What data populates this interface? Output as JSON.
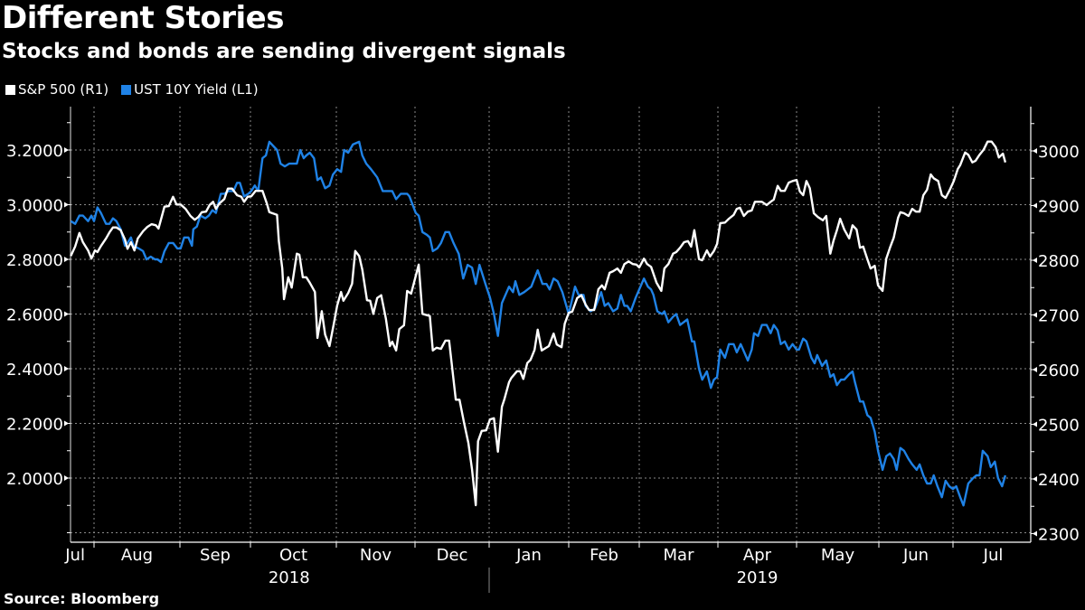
{
  "colors": {
    "background": "#000000",
    "sp500": "#ffffff",
    "ust10y": "#1f82e6",
    "grid": "#8a8a8a"
  },
  "chart_data": {
    "type": "line",
    "title": "Different Stories",
    "subtitle": "Stocks and bonds are sending divergent signals",
    "source": "Source: Bloomberg",
    "x_unit": "months since 2018-07-01",
    "x_tick_labels": [
      "Jul",
      "Aug",
      "Sep",
      "Oct",
      "Nov",
      "Dec",
      "Jan",
      "Feb",
      "Mar",
      "Apr",
      "May",
      "Jun",
      "Jul"
    ],
    "year_labels": [
      "2018",
      "2019"
    ],
    "left_axis": {
      "ylim": [
        1.8,
        3.3
      ],
      "tick_labels": [
        "3.2000",
        "3.0000",
        "2.8000",
        "2.6000",
        "2.4000",
        "2.2000",
        "2.0000"
      ],
      "ticks": [
        3.2,
        3.0,
        2.8,
        2.6,
        2.4,
        2.2,
        2.0
      ]
    },
    "right_axis": {
      "ylim": [
        2300,
        3050
      ],
      "tick_labels": [
        "3000",
        "2900",
        "2800",
        "2700",
        "2600",
        "2500",
        "2400",
        "2300"
      ],
      "ticks": [
        3000,
        2900,
        2800,
        2700,
        2600,
        2500,
        2400,
        2300
      ]
    },
    "grid": true,
    "legend_position": "top-left",
    "series": [
      {
        "name": "S&P 500 (R1)",
        "axis": "right",
        "x": [
          0.73,
          0.78,
          0.83,
          0.87,
          0.93,
          0.97,
          1.01,
          1.04,
          1.08,
          1.14,
          1.18,
          1.22,
          1.26,
          1.31,
          1.36,
          1.39,
          1.43,
          1.47,
          1.51,
          1.57,
          1.62,
          1.67,
          1.72,
          1.75,
          1.79,
          1.82,
          1.87,
          1.92,
          1.96,
          2.01,
          2.08,
          2.15,
          2.21,
          2.26,
          2.31,
          2.37,
          2.42,
          2.47,
          2.51,
          2.56,
          2.63,
          2.68,
          2.74,
          2.81,
          2.87,
          2.91,
          2.96,
          3.01,
          3.06,
          3.14,
          3.19,
          3.22,
          3.31,
          3.33,
          3.37,
          3.39,
          3.44,
          3.48,
          3.54,
          3.57,
          3.61,
          3.65,
          3.69,
          3.75,
          3.78,
          3.83,
          3.87,
          3.92,
          3.97,
          4.01,
          4.06,
          4.09,
          4.15,
          4.2,
          4.24,
          4.29,
          4.33,
          4.39,
          4.43,
          4.47,
          4.52,
          4.57,
          4.63,
          4.68,
          4.71,
          4.76,
          4.8,
          4.86,
          4.9,
          4.95,
          5.05,
          5.1,
          5.2,
          5.24,
          5.29,
          5.35,
          5.41,
          5.46,
          5.55,
          5.6,
          5.66,
          5.72,
          5.77,
          5.82,
          5.85,
          5.9,
          5.96,
          6.01,
          6.06,
          6.11,
          6.16,
          6.19,
          6.25,
          6.28,
          6.35,
          6.39,
          6.43,
          6.48,
          6.52,
          6.57,
          6.61,
          6.66,
          6.75,
          6.81,
          6.85,
          6.91,
          6.95,
          7.0,
          7.05,
          7.12,
          7.18,
          7.24,
          7.29,
          7.36,
          7.42,
          7.47,
          7.51,
          7.58,
          7.63,
          7.69,
          7.74,
          7.79,
          7.85,
          7.91,
          7.96,
          8.0,
          8.06,
          8.1,
          8.15,
          8.22,
          8.28,
          8.32,
          8.37,
          8.43,
          8.47,
          8.52,
          8.57,
          8.62,
          8.66,
          8.7,
          8.76,
          8.8,
          8.86,
          8.9,
          8.95,
          8.99,
          9.03,
          9.09,
          9.14,
          9.2,
          9.24,
          9.28,
          9.33,
          9.38,
          9.43,
          9.47,
          9.52,
          9.56,
          9.62,
          9.67,
          9.71,
          9.76,
          9.8,
          9.85,
          9.9,
          9.95,
          10.0,
          10.04,
          10.08,
          10.12,
          10.16,
          10.21,
          10.26,
          10.32,
          10.36,
          10.41,
          10.45,
          10.49,
          10.53,
          10.58,
          10.64,
          10.68,
          10.73,
          10.77,
          10.81,
          10.86,
          10.9,
          10.95,
          10.99,
          11.05,
          11.1,
          11.15,
          11.2,
          11.26,
          11.29,
          11.34,
          11.4,
          11.45,
          11.5,
          11.55,
          11.6,
          11.65,
          11.7,
          11.74,
          11.8,
          11.85,
          11.9,
          11.95,
          12.01,
          12.06,
          12.09,
          12.15,
          12.19,
          12.24,
          12.28,
          12.33,
          12.38,
          12.43,
          12.48,
          12.53,
          12.57,
          12.62,
          12.65
        ],
        "values": [
          2808,
          2825,
          2850,
          2833,
          2818,
          2803,
          2818,
          2815,
          2826,
          2840,
          2851,
          2860,
          2860,
          2855,
          2838,
          2821,
          2833,
          2818,
          2840,
          2853,
          2861,
          2866,
          2864,
          2858,
          2881,
          2898,
          2899,
          2916,
          2902,
          2902,
          2894,
          2881,
          2874,
          2879,
          2888,
          2889,
          2901,
          2907,
          2894,
          2904,
          2912,
          2931,
          2931,
          2919,
          2916,
          2907,
          2916,
          2917,
          2927,
          2927,
          2904,
          2888,
          2883,
          2835,
          2785,
          2729,
          2769,
          2750,
          2812,
          2810,
          2769,
          2769,
          2759,
          2742,
          2658,
          2707,
          2664,
          2643,
          2684,
          2717,
          2742,
          2726,
          2740,
          2757,
          2817,
          2808,
          2783,
          2727,
          2726,
          2702,
          2731,
          2736,
          2693,
          2643,
          2651,
          2635,
          2674,
          2681,
          2744,
          2739,
          2792,
          2702,
          2698,
          2635,
          2640,
          2638,
          2653,
          2653,
          2545,
          2545,
          2504,
          2466,
          2417,
          2352,
          2469,
          2488,
          2489,
          2509,
          2511,
          2450,
          2532,
          2545,
          2577,
          2585,
          2597,
          2597,
          2583,
          2612,
          2618,
          2636,
          2673,
          2635,
          2643,
          2666,
          2646,
          2641,
          2684,
          2704,
          2706,
          2731,
          2736,
          2719,
          2709,
          2709,
          2747,
          2754,
          2747,
          2777,
          2780,
          2785,
          2777,
          2793,
          2798,
          2793,
          2792,
          2787,
          2803,
          2793,
          2788,
          2759,
          2744,
          2785,
          2793,
          2812,
          2815,
          2823,
          2833,
          2835,
          2825,
          2855,
          2802,
          2800,
          2818,
          2807,
          2817,
          2830,
          2868,
          2869,
          2876,
          2883,
          2894,
          2896,
          2881,
          2889,
          2891,
          2907,
          2907,
          2907,
          2901,
          2907,
          2911,
          2936,
          2927,
          2927,
          2942,
          2945,
          2947,
          2926,
          2919,
          2945,
          2932,
          2886,
          2879,
          2873,
          2881,
          2812,
          2836,
          2855,
          2876,
          2856,
          2840,
          2864,
          2856,
          2823,
          2825,
          2802,
          2785,
          2790,
          2754,
          2744,
          2803,
          2823,
          2841,
          2878,
          2888,
          2886,
          2881,
          2894,
          2889,
          2889,
          2919,
          2929,
          2957,
          2950,
          2945,
          2919,
          2914,
          2927,
          2945,
          2967,
          2974,
          2997,
          2993,
          2979,
          2982,
          2993,
          3002,
          3017,
          3017,
          3007,
          2988,
          2995,
          2979
        ]
      },
      {
        "name": "UST 10Y Yield (L1)",
        "axis": "left",
        "x": [
          0.73,
          0.78,
          0.83,
          0.87,
          0.93,
          0.97,
          1.0,
          1.04,
          1.08,
          1.14,
          1.18,
          1.22,
          1.26,
          1.31,
          1.36,
          1.39,
          1.43,
          1.46,
          1.52,
          1.57,
          1.61,
          1.66,
          1.71,
          1.74,
          1.78,
          1.82,
          1.87,
          1.92,
          1.97,
          2.01,
          2.06,
          2.12,
          2.17,
          2.19,
          2.24,
          2.29,
          2.36,
          2.41,
          2.46,
          2.51,
          2.58,
          2.63,
          2.69,
          2.76,
          2.81,
          2.85,
          2.91,
          2.97,
          3.01,
          3.05,
          3.09,
          3.14,
          3.18,
          3.22,
          3.31,
          3.35,
          3.4,
          3.45,
          3.51,
          3.54,
          3.58,
          3.62,
          3.65,
          3.69,
          3.74,
          3.78,
          3.82,
          3.87,
          3.92,
          3.96,
          4.01,
          4.06,
          4.1,
          4.15,
          4.21,
          4.29,
          4.33,
          4.38,
          4.44,
          4.52,
          4.59,
          4.67,
          4.71,
          4.76,
          4.82,
          4.9,
          4.93,
          5.01,
          5.05,
          5.1,
          5.16,
          5.2,
          5.24,
          5.3,
          5.35,
          5.41,
          5.46,
          5.52,
          5.59,
          5.65,
          5.71,
          5.77,
          5.82,
          5.87,
          5.95,
          6.01,
          6.06,
          6.11,
          6.16,
          6.25,
          6.3,
          6.33,
          6.38,
          6.44,
          6.53,
          6.61,
          6.67,
          6.72,
          6.76,
          6.81,
          6.86,
          6.92,
          7.0,
          7.09,
          7.14,
          7.21,
          7.24,
          7.31,
          7.37,
          7.46,
          7.51,
          7.56,
          7.63,
          7.69,
          7.74,
          7.79,
          7.83,
          7.88,
          7.95,
          8.06,
          8.11,
          8.15,
          8.18,
          8.23,
          8.29,
          8.32,
          8.37,
          8.43,
          8.47,
          8.52,
          8.61,
          8.67,
          8.7,
          8.76,
          8.8,
          8.86,
          8.91,
          8.95,
          8.99,
          9.03,
          9.09,
          9.14,
          9.2,
          9.24,
          9.29,
          9.38,
          9.43,
          9.46,
          9.51,
          9.56,
          9.62,
          9.67,
          9.71,
          9.76,
          9.8,
          9.85,
          9.9,
          9.95,
          10.0,
          10.03,
          10.08,
          10.12,
          10.18,
          10.22,
          10.25,
          10.31,
          10.36,
          10.41,
          10.45,
          10.49,
          10.54,
          10.58,
          10.64,
          10.68,
          10.71,
          10.77,
          10.81,
          10.86,
          10.9,
          10.95,
          10.99,
          11.05,
          11.1,
          11.15,
          11.2,
          11.24,
          11.29,
          11.34,
          11.4,
          11.45,
          11.51,
          11.55,
          11.6,
          11.65,
          11.7,
          11.74,
          11.79,
          11.85,
          11.9,
          11.95,
          12.0,
          12.04,
          12.09,
          12.13,
          12.19,
          12.25,
          12.29,
          12.33,
          12.37,
          12.43,
          12.47,
          12.52,
          12.56,
          12.61,
          12.65
        ],
        "values": [
          2.94,
          2.93,
          2.96,
          2.96,
          2.94,
          2.96,
          2.94,
          2.99,
          2.97,
          2.93,
          2.93,
          2.95,
          2.94,
          2.91,
          2.85,
          2.86,
          2.88,
          2.85,
          2.84,
          2.83,
          2.8,
          2.81,
          2.8,
          2.8,
          2.79,
          2.83,
          2.86,
          2.86,
          2.84,
          2.84,
          2.88,
          2.88,
          2.85,
          2.91,
          2.92,
          2.96,
          2.95,
          2.96,
          2.98,
          2.97,
          3.04,
          3.04,
          3.05,
          3.05,
          3.08,
          3.08,
          3.03,
          3.04,
          3.05,
          3.07,
          3.05,
          3.17,
          3.18,
          3.23,
          3.2,
          3.15,
          3.14,
          3.15,
          3.15,
          3.15,
          3.2,
          3.17,
          3.18,
          3.19,
          3.17,
          3.09,
          3.1,
          3.06,
          3.07,
          3.11,
          3.13,
          3.12,
          3.2,
          3.19,
          3.22,
          3.23,
          3.18,
          3.15,
          3.13,
          3.1,
          3.05,
          3.05,
          3.05,
          3.02,
          3.04,
          3.04,
          3.03,
          2.97,
          2.96,
          2.9,
          2.89,
          2.88,
          2.83,
          2.84,
          2.86,
          2.9,
          2.9,
          2.86,
          2.82,
          2.73,
          2.78,
          2.77,
          2.71,
          2.78,
          2.71,
          2.66,
          2.6,
          2.52,
          2.64,
          2.7,
          2.68,
          2.72,
          2.67,
          2.68,
          2.7,
          2.76,
          2.71,
          2.71,
          2.69,
          2.73,
          2.72,
          2.68,
          2.6,
          2.7,
          2.67,
          2.67,
          2.63,
          2.61,
          2.62,
          2.68,
          2.63,
          2.64,
          2.61,
          2.62,
          2.67,
          2.63,
          2.63,
          2.61,
          2.66,
          2.73,
          2.7,
          2.69,
          2.67,
          2.61,
          2.6,
          2.61,
          2.57,
          2.59,
          2.6,
          2.56,
          2.58,
          2.5,
          2.5,
          2.4,
          2.36,
          2.39,
          2.33,
          2.36,
          2.37,
          2.47,
          2.44,
          2.49,
          2.49,
          2.46,
          2.49,
          2.43,
          2.47,
          2.53,
          2.52,
          2.56,
          2.56,
          2.53,
          2.56,
          2.54,
          2.49,
          2.5,
          2.47,
          2.49,
          2.47,
          2.47,
          2.51,
          2.5,
          2.44,
          2.42,
          2.45,
          2.41,
          2.43,
          2.37,
          2.38,
          2.34,
          2.36,
          2.36,
          2.38,
          2.39,
          2.35,
          2.28,
          2.28,
          2.23,
          2.22,
          2.17,
          2.1,
          2.03,
          2.08,
          2.09,
          2.07,
          2.03,
          2.11,
          2.1,
          2.07,
          2.05,
          2.03,
          2.05,
          2.01,
          1.98,
          1.98,
          2.01,
          1.97,
          1.93,
          1.99,
          1.97,
          1.96,
          1.97,
          1.93,
          1.9,
          1.98,
          2.0,
          2.01,
          2.01,
          2.1,
          2.08,
          2.04,
          2.06,
          2.0,
          1.97,
          2.01
        ]
      }
    ]
  }
}
